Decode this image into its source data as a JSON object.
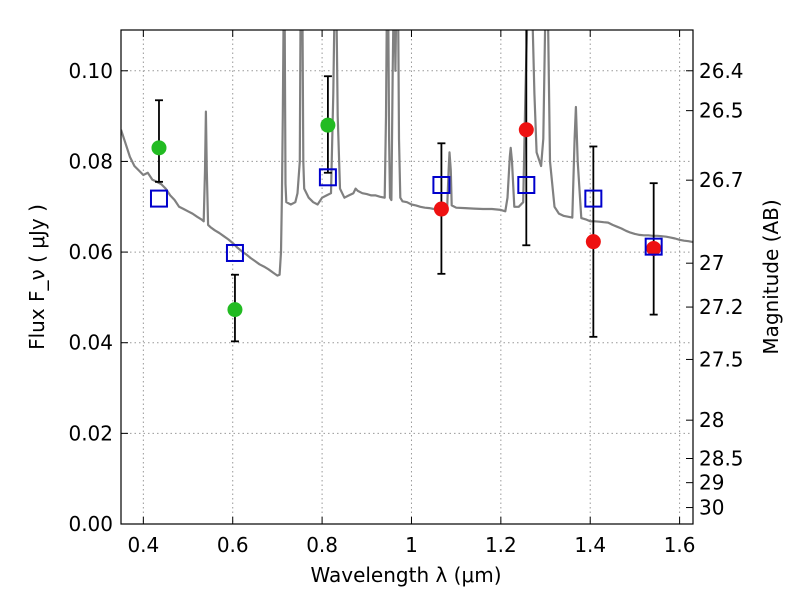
{
  "chart_data": {
    "type": "scatter",
    "xlabel": "Wavelength λ (μm)",
    "ylabel": "Flux F_ν ( μJy )",
    "y2label": "Magnitude (AB)",
    "xlim": [
      0.35,
      1.63
    ],
    "ylim": [
      0.0,
      0.109
    ],
    "grid": true,
    "x_ticks": [
      {
        "value": 0.4,
        "label": "0.4"
      },
      {
        "value": 0.6,
        "label": "0.6"
      },
      {
        "value": 0.8,
        "label": "0.8"
      },
      {
        "value": 1.0,
        "label": "1"
      },
      {
        "value": 1.2,
        "label": "1.2"
      },
      {
        "value": 1.4,
        "label": "1.4"
      },
      {
        "value": 1.6,
        "label": "1.6"
      }
    ],
    "y_ticks": [
      {
        "value": 0.0,
        "label": "0.00"
      },
      {
        "value": 0.02,
        "label": "0.02"
      },
      {
        "value": 0.04,
        "label": "0.04"
      },
      {
        "value": 0.06,
        "label": "0.06"
      },
      {
        "value": 0.08,
        "label": "0.08"
      },
      {
        "value": 0.1,
        "label": "0.10"
      }
    ],
    "y2_ticks": [
      {
        "value": 26.4,
        "label": "26.4"
      },
      {
        "value": 26.5,
        "label": "26.5"
      },
      {
        "value": 26.7,
        "label": "26.7"
      },
      {
        "value": 27.0,
        "label": "27"
      },
      {
        "value": 27.2,
        "label": "27.2"
      },
      {
        "value": 27.5,
        "label": "27.5"
      },
      {
        "value": 28.0,
        "label": "28"
      },
      {
        "value": 28.5,
        "label": "28.5"
      },
      {
        "value": 29.0,
        "label": "29"
      },
      {
        "value": 30.0,
        "label": "30"
      }
    ],
    "magnitude_zero_point_ujy": 3631000000,
    "colors": {
      "template": "#808080",
      "green_points": "#22bb22",
      "red_points": "#ee1111",
      "model_squares": "#0000cc",
      "errorbars": "#000000",
      "grid": "#999999"
    },
    "template_spectrum": [
      [
        0.35,
        0.087
      ],
      [
        0.36,
        0.084
      ],
      [
        0.37,
        0.081
      ],
      [
        0.38,
        0.079
      ],
      [
        0.39,
        0.078
      ],
      [
        0.4,
        0.077
      ],
      [
        0.41,
        0.0775
      ],
      [
        0.42,
        0.076
      ],
      [
        0.43,
        0.0755
      ],
      [
        0.44,
        0.075
      ],
      [
        0.45,
        0.074
      ],
      [
        0.46,
        0.0725
      ],
      [
        0.47,
        0.0715
      ],
      [
        0.48,
        0.07
      ],
      [
        0.49,
        0.0695
      ],
      [
        0.5,
        0.069
      ],
      [
        0.51,
        0.0685
      ],
      [
        0.52,
        0.0678
      ],
      [
        0.53,
        0.0672
      ],
      [
        0.535,
        0.0668
      ],
      [
        0.538,
        0.078
      ],
      [
        0.54,
        0.091
      ],
      [
        0.542,
        0.078
      ],
      [
        0.545,
        0.066
      ],
      [
        0.55,
        0.0655
      ],
      [
        0.56,
        0.0648
      ],
      [
        0.57,
        0.0642
      ],
      [
        0.58,
        0.0635
      ],
      [
        0.59,
        0.0628
      ],
      [
        0.6,
        0.062
      ],
      [
        0.61,
        0.061
      ],
      [
        0.62,
        0.0602
      ],
      [
        0.63,
        0.0595
      ],
      [
        0.64,
        0.0587
      ],
      [
        0.65,
        0.058
      ],
      [
        0.66,
        0.0573
      ],
      [
        0.67,
        0.0568
      ],
      [
        0.68,
        0.0562
      ],
      [
        0.69,
        0.0555
      ],
      [
        0.7,
        0.0548
      ],
      [
        0.705,
        0.055
      ],
      [
        0.708,
        0.06
      ],
      [
        0.71,
        0.072
      ],
      [
        0.712,
        0.09
      ],
      [
        0.714,
        0.115
      ],
      [
        0.716,
        0.115
      ],
      [
        0.718,
        0.075
      ],
      [
        0.72,
        0.071
      ],
      [
        0.73,
        0.0705
      ],
      [
        0.74,
        0.071
      ],
      [
        0.745,
        0.073
      ],
      [
        0.75,
        0.08
      ],
      [
        0.752,
        0.115
      ],
      [
        0.756,
        0.115
      ],
      [
        0.758,
        0.08
      ],
      [
        0.76,
        0.074
      ],
      [
        0.77,
        0.072
      ],
      [
        0.78,
        0.071
      ],
      [
        0.79,
        0.0705
      ],
      [
        0.8,
        0.072
      ],
      [
        0.81,
        0.0725
      ],
      [
        0.82,
        0.073
      ],
      [
        0.825,
        0.095
      ],
      [
        0.828,
        0.115
      ],
      [
        0.832,
        0.115
      ],
      [
        0.835,
        0.09
      ],
      [
        0.84,
        0.074
      ],
      [
        0.845,
        0.073
      ],
      [
        0.85,
        0.072
      ],
      [
        0.86,
        0.0725
      ],
      [
        0.87,
        0.073
      ],
      [
        0.875,
        0.074
      ],
      [
        0.88,
        0.0735
      ],
      [
        0.89,
        0.073
      ],
      [
        0.9,
        0.0728
      ],
      [
        0.91,
        0.0725
      ],
      [
        0.92,
        0.0725
      ],
      [
        0.93,
        0.0722
      ],
      [
        0.94,
        0.072
      ],
      [
        0.943,
        0.09
      ],
      [
        0.945,
        0.115
      ],
      [
        0.948,
        0.115
      ],
      [
        0.95,
        0.085
      ],
      [
        0.952,
        0.072
      ],
      [
        0.955,
        0.0715
      ],
      [
        0.958,
        0.1
      ],
      [
        0.96,
        0.115
      ],
      [
        0.962,
        0.115
      ],
      [
        0.964,
        0.1
      ],
      [
        0.966,
        0.115
      ],
      [
        0.97,
        0.115
      ],
      [
        0.972,
        0.085
      ],
      [
        0.975,
        0.072
      ],
      [
        0.98,
        0.0712
      ],
      [
        0.99,
        0.071
      ],
      [
        1.0,
        0.0705
      ],
      [
        1.01,
        0.0703
      ],
      [
        1.02,
        0.07
      ],
      [
        1.03,
        0.0698
      ],
      [
        1.04,
        0.0697
      ],
      [
        1.05,
        0.0695
      ],
      [
        1.06,
        0.0695
      ],
      [
        1.07,
        0.0697
      ],
      [
        1.08,
        0.0699
      ],
      [
        1.083,
        0.078
      ],
      [
        1.085,
        0.082
      ],
      [
        1.088,
        0.078
      ],
      [
        1.09,
        0.0703
      ],
      [
        1.1,
        0.0698
      ],
      [
        1.12,
        0.0697
      ],
      [
        1.14,
        0.0696
      ],
      [
        1.16,
        0.0695
      ],
      [
        1.18,
        0.0695
      ],
      [
        1.2,
        0.0693
      ],
      [
        1.21,
        0.069
      ],
      [
        1.215,
        0.072
      ],
      [
        1.22,
        0.081
      ],
      [
        1.222,
        0.083
      ],
      [
        1.225,
        0.08
      ],
      [
        1.23,
        0.07
      ],
      [
        1.24,
        0.07
      ],
      [
        1.25,
        0.071
      ],
      [
        1.255,
        0.095
      ],
      [
        1.26,
        0.115
      ],
      [
        1.27,
        0.115
      ],
      [
        1.275,
        0.095
      ],
      [
        1.28,
        0.082
      ],
      [
        1.29,
        0.079
      ],
      [
        1.295,
        0.085
      ],
      [
        1.3,
        0.115
      ],
      [
        1.305,
        0.115
      ],
      [
        1.31,
        0.08
      ],
      [
        1.32,
        0.07
      ],
      [
        1.33,
        0.0685
      ],
      [
        1.34,
        0.068
      ],
      [
        1.35,
        0.0678
      ],
      [
        1.36,
        0.0676
      ],
      [
        1.365,
        0.085
      ],
      [
        1.368,
        0.092
      ],
      [
        1.372,
        0.08
      ],
      [
        1.38,
        0.0675
      ],
      [
        1.39,
        0.0672
      ],
      [
        1.4,
        0.0668
      ],
      [
        1.41,
        0.0668
      ],
      [
        1.42,
        0.0667
      ],
      [
        1.43,
        0.0666
      ],
      [
        1.44,
        0.0665
      ],
      [
        1.45,
        0.066
      ],
      [
        1.46,
        0.0656
      ],
      [
        1.47,
        0.0652
      ],
      [
        1.48,
        0.0647
      ],
      [
        1.49,
        0.0643
      ],
      [
        1.5,
        0.064
      ],
      [
        1.51,
        0.0638
      ],
      [
        1.52,
        0.0637
      ],
      [
        1.53,
        0.0637
      ],
      [
        1.54,
        0.0636
      ],
      [
        1.55,
        0.0636
      ],
      [
        1.56,
        0.0635
      ],
      [
        1.57,
        0.0634
      ],
      [
        1.58,
        0.0632
      ],
      [
        1.59,
        0.063
      ],
      [
        1.6,
        0.0627
      ],
      [
        1.61,
        0.0625
      ],
      [
        1.62,
        0.0624
      ],
      [
        1.63,
        0.0622
      ]
    ],
    "series": [
      {
        "marker": "circle",
        "color": "green",
        "points": [
          {
            "x": 0.435,
            "y": 0.083,
            "err_low": 0.0075,
            "err_high": 0.0105
          },
          {
            "x": 0.605,
            "y": 0.0473,
            "err_low": 0.007,
            "err_high": 0.0077
          },
          {
            "x": 0.813,
            "y": 0.088,
            "err_low": 0.0105,
            "err_high": 0.0108
          }
        ]
      },
      {
        "marker": "circle",
        "color": "red",
        "points": [
          {
            "x": 1.067,
            "y": 0.0695,
            "err_low": 0.0143,
            "err_high": 0.0145
          },
          {
            "x": 1.257,
            "y": 0.087,
            "err_low": 0.0255,
            "err_high": 0.03
          },
          {
            "x": 1.407,
            "y": 0.0623,
            "err_low": 0.021,
            "err_high": 0.021
          },
          {
            "x": 1.542,
            "y": 0.0608,
            "err_low": 0.0146,
            "err_high": 0.0144
          }
        ]
      },
      {
        "marker": "square",
        "color": "blue",
        "points": [
          {
            "x": 0.435,
            "y": 0.0718
          },
          {
            "x": 0.605,
            "y": 0.0598
          },
          {
            "x": 0.813,
            "y": 0.0765
          },
          {
            "x": 1.067,
            "y": 0.0748
          },
          {
            "x": 1.257,
            "y": 0.0748
          },
          {
            "x": 1.407,
            "y": 0.0718
          },
          {
            "x": 1.542,
            "y": 0.0612
          }
        ]
      }
    ]
  }
}
